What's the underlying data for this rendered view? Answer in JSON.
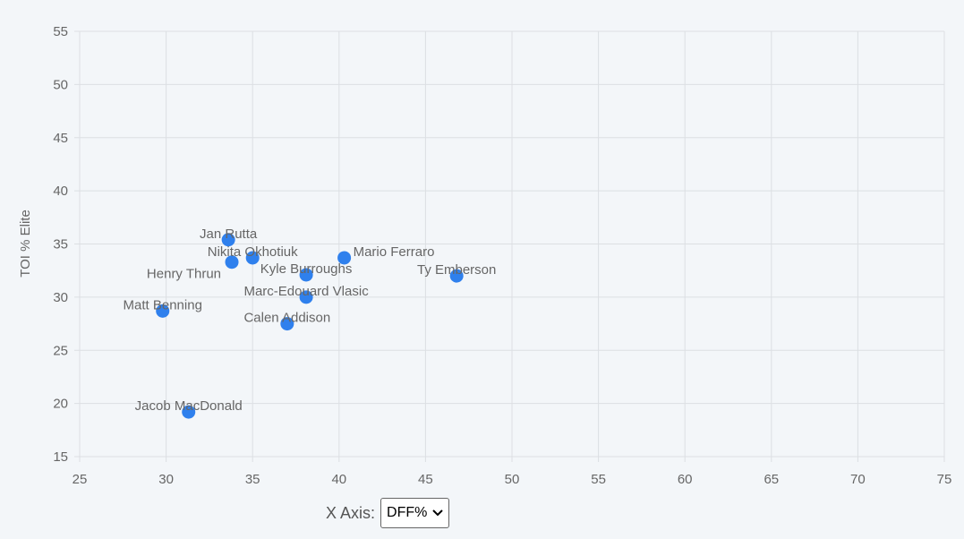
{
  "chart_data": {
    "type": "scatter",
    "title": "",
    "xlabel": "",
    "ylabel": "TOI % Elite",
    "xlim": [
      25,
      75
    ],
    "ylim": [
      15,
      55
    ],
    "xticks": [
      25,
      30,
      35,
      40,
      45,
      50,
      55,
      60,
      65,
      70,
      75
    ],
    "yticks": [
      15,
      20,
      25,
      30,
      35,
      40,
      45,
      50,
      55
    ],
    "grid": true,
    "point_color": "#2f80ed",
    "points": [
      {
        "label": "Jan Rutta",
        "x": 33.6,
        "y": 35.4
      },
      {
        "label": "Nikita Okhotiuk",
        "x": 35.0,
        "y": 33.7
      },
      {
        "label": "Henry Thrun",
        "x": 33.8,
        "y": 33.3
      },
      {
        "label": "Mario Ferraro",
        "x": 40.3,
        "y": 33.7
      },
      {
        "label": "Kyle Burroughs",
        "x": 38.1,
        "y": 32.1
      },
      {
        "label": "Ty Emberson",
        "x": 46.8,
        "y": 32.0
      },
      {
        "label": "Marc-Edouard Vlasic",
        "x": 38.1,
        "y": 30.0
      },
      {
        "label": "Matt Benning",
        "x": 29.8,
        "y": 28.7
      },
      {
        "label": "Calen Addison",
        "x": 37.0,
        "y": 27.5
      },
      {
        "label": "Jacob MacDonald",
        "x": 31.3,
        "y": 19.2
      }
    ]
  },
  "controls": {
    "x_axis_label": "X Axis:",
    "x_axis_value": "DFF%"
  }
}
